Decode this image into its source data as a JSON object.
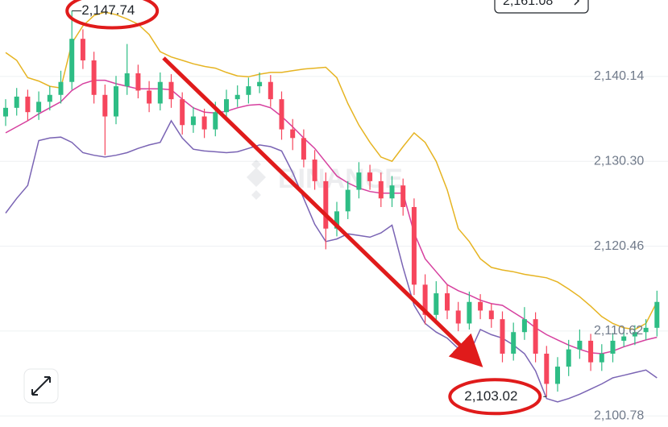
{
  "chart_data": {
    "type": "candlestick",
    "watermark": "BINANCE",
    "price_tag": {
      "value": 2161.08,
      "label": "2,161.08"
    },
    "up_color": "#2ebd85",
    "down_color": "#f6465d",
    "ylim": [
      2099.5,
      2149.0
    ],
    "yticks": [
      {
        "value": 2100.78,
        "label": "2,100.78"
      },
      {
        "value": 2110.62,
        "label": "2,110.62"
      },
      {
        "value": 2120.46,
        "label": "2,120.46"
      },
      {
        "value": 2130.3,
        "label": "2,130.30"
      },
      {
        "value": 2140.14,
        "label": "2,140.14"
      }
    ],
    "grid": true,
    "open": [
      2135.5,
      2136.5,
      2137.8,
      2136.0,
      2137.2,
      2138.0,
      2139.5,
      2144.5,
      2142.0,
      2138.0,
      2135.5,
      2139.0,
      2140.5,
      2138.5,
      2137.0,
      2139.5,
      2137.5,
      2134.5,
      2135.5,
      2134.0,
      2136.0,
      2137.5,
      2138.0,
      2139.0,
      2139.5,
      2137.5,
      2134.0,
      2133.0,
      2130.5,
      2128.0,
      2122.5,
      2124.5,
      2127.0,
      2129.0,
      2128.0,
      2126.0,
      2127.5,
      2125.0,
      2116.0,
      2112.5,
      2115.0,
      2113.0,
      2111.5,
      2114.0,
      2113.0,
      2112.0,
      2108.0,
      2110.5,
      2112.0,
      2108.0,
      2104.5,
      2106.5,
      2108.5,
      2109.5,
      2107.0,
      2108.0,
      2109.5,
      2110.0,
      2110.5,
      2111.0
    ],
    "high": [
      2137.5,
      2138.8,
      2138.6,
      2138.4,
      2139.0,
      2140.8,
      2147.74,
      2145.6,
      2143.0,
      2139.2,
      2140.2,
      2143.9,
      2141.5,
      2139.6,
      2140.6,
      2140.4,
      2138.3,
      2136.6,
      2136.4,
      2137.2,
      2138.6,
      2139.1,
      2140.0,
      2140.6,
      2140.3,
      2138.4,
      2135.2,
      2134.0,
      2131.6,
      2129.0,
      2125.6,
      2128.0,
      2130.2,
      2129.9,
      2129.0,
      2128.6,
      2128.3,
      2126.0,
      2117.2,
      2116.4,
      2116.0,
      2114.0,
      2115.2,
      2114.9,
      2113.8,
      2112.9,
      2111.6,
      2113.4,
      2112.8,
      2108.9,
      2107.6,
      2109.6,
      2110.8,
      2110.3,
      2109.1,
      2110.4,
      2111.0,
      2111.3,
      2112.0,
      2115.3
    ],
    "low": [
      2134.4,
      2135.6,
      2135.0,
      2135.1,
      2136.2,
      2137.0,
      2138.6,
      2141.0,
      2137.0,
      2131.0,
      2134.6,
      2138.0,
      2137.6,
      2136.0,
      2136.2,
      2136.5,
      2133.4,
      2133.6,
      2133.0,
      2133.2,
      2135.0,
      2136.6,
      2137.0,
      2138.2,
      2136.6,
      2132.8,
      2131.6,
      2129.6,
      2127.0,
      2120.1,
      2121.6,
      2123.6,
      2126.0,
      2127.0,
      2125.0,
      2125.0,
      2124.0,
      2114.8,
      2111.4,
      2111.6,
      2112.0,
      2110.6,
      2110.8,
      2112.0,
      2111.0,
      2107.0,
      2107.2,
      2109.6,
      2107.0,
      2103.02,
      2103.6,
      2105.4,
      2107.4,
      2106.0,
      2106.0,
      2107.0,
      2108.8,
      2109.0,
      2109.6,
      2110.0
    ],
    "close": [
      2136.5,
      2137.8,
      2136.0,
      2137.2,
      2138.0,
      2139.5,
      2144.5,
      2142.0,
      2138.0,
      2135.5,
      2139.0,
      2140.5,
      2138.5,
      2137.0,
      2139.5,
      2137.5,
      2134.5,
      2135.5,
      2134.0,
      2136.0,
      2137.5,
      2138.0,
      2139.0,
      2139.5,
      2137.5,
      2134.0,
      2133.0,
      2130.5,
      2128.0,
      2122.5,
      2124.5,
      2127.0,
      2129.0,
      2128.0,
      2126.0,
      2127.5,
      2125.0,
      2116.0,
      2112.5,
      2115.0,
      2113.0,
      2111.5,
      2114.0,
      2113.0,
      2112.0,
      2108.0,
      2110.5,
      2112.0,
      2108.0,
      2104.5,
      2106.5,
      2108.5,
      2109.5,
      2107.0,
      2108.0,
      2109.5,
      2110.0,
      2110.5,
      2111.0,
      2114.0
    ],
    "bands": [
      {
        "color": "#e6b422",
        "values": [
          2142.9,
          2142.0,
          2140.0,
          2139.6,
          2139.0,
          2138.8,
          2144.0,
          2146.0,
          2147.2,
          2147.6,
          2147.3,
          2146.8,
          2146.2,
          2145.0,
          2143.0,
          2142.4,
          2142.0,
          2141.6,
          2141.3,
          2141.1,
          2140.6,
          2140.2,
          2140.1,
          2140.4,
          2140.6,
          2140.6,
          2140.8,
          2141.0,
          2141.1,
          2141.2,
          2140.0,
          2137.0,
          2134.5,
          2132.5,
          2130.8,
          2130.3,
          2132.0,
          2133.6,
          2132.5,
          2130.3,
          2127.0,
          2122.5,
          2121.0,
          2119.0,
          2118.0,
          2117.7,
          2117.5,
          2117.2,
          2117.0,
          2116.8,
          2116.3,
          2115.5,
          2114.6,
          2113.5,
          2112.3,
          2111.5,
          2111.0,
          2110.8,
          2111.5,
          2114.0
        ]
      },
      {
        "color": "#d6409f",
        "values": [
          2133.6,
          2134.3,
          2135.0,
          2135.8,
          2136.5,
          2137.2,
          2138.5,
          2139.3,
          2139.7,
          2139.7,
          2139.3,
          2139.0,
          2138.7,
          2138.7,
          2138.7,
          2138.6,
          2137.5,
          2136.5,
          2136.0,
          2135.9,
          2136.1,
          2136.5,
          2136.8,
          2136.9,
          2136.5,
          2135.5,
          2134.3,
          2133.0,
          2131.8,
          2130.2,
          2128.6,
          2127.8,
          2127.2,
          2126.8,
          2126.6,
          2126.6,
          2126.6,
          2122.0,
          2119.0,
          2117.5,
          2116.0,
          2115.3,
          2114.8,
          2114.2,
          2113.8,
          2113.6,
          2112.8,
          2112.0,
          2111.0,
          2110.2,
          2109.6,
          2109.0,
          2108.5,
          2108.1,
          2108.0,
          2108.3,
          2108.8,
          2109.2,
          2109.6,
          2109.9
        ]
      },
      {
        "color": "#7a64b4",
        "values": [
          2124.3,
          2126.0,
          2127.5,
          2132.7,
          2133.0,
          2133.1,
          2132.5,
          2131.3,
          2131.0,
          2130.8,
          2131.0,
          2131.3,
          2131.8,
          2132.2,
          2132.5,
          2135.0,
          2133.0,
          2131.7,
          2131.5,
          2131.4,
          2131.3,
          2131.4,
          2131.8,
          2132.2,
          2132.0,
          2131.5,
          2129.0,
          2126.0,
          2123.0,
          2121.0,
          2121.3,
          2121.9,
          2121.7,
          2121.5,
          2122.0,
          2122.9,
          2118.0,
          2113.6,
          2111.5,
          2110.5,
          2109.8,
          2108.6,
          2108.0,
          2110.8,
          2110.2,
          2109.8,
          2109.0,
          2108.0,
          2106.0,
          2102.8,
          2102.4,
          2102.8,
          2103.3,
          2103.9,
          2104.5,
          2105.2,
          2105.5,
          2105.8,
          2106.1,
          2105.2
        ]
      }
    ],
    "annotations": [
      {
        "value": 2147.74,
        "label": "2,147.74",
        "index": 6
      },
      {
        "value": 2103.02,
        "label": "2,103.02",
        "index": 49
      }
    ]
  }
}
